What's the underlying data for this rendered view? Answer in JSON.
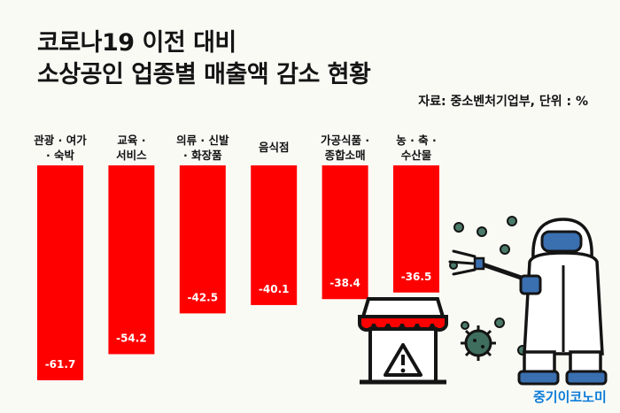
{
  "title_line1": "코로나19 이전 대비",
  "title_line2": "소상공인 업종별 매출액 감소 현황",
  "source": "자료: 중소벤처기업부, 단위 : %",
  "brand": "중기이코노미",
  "colors": {
    "bar": "#ff0000",
    "background": "#fafaf5",
    "brand": "#0a7bd8"
  },
  "chart_data": {
    "type": "bar",
    "orientation": "vertical-down",
    "categories": [
      [
        "관광 · 여가",
        "· 숙박"
      ],
      [
        "교육 ·",
        "서비스"
      ],
      [
        "의류 · 신발",
        "· 화장품"
      ],
      [
        "음식점"
      ],
      [
        "가공식품 ·",
        "종합소매"
      ],
      [
        "농 · 축 ·",
        "수산물"
      ]
    ],
    "values": [
      -61.7,
      -54.2,
      -42.5,
      -40.1,
      -38.4,
      -36.5
    ],
    "value_labels": [
      "-61.7",
      "-54.2",
      "-42.5",
      "-40.1",
      "-38.4",
      "-36.5"
    ],
    "ylim": [
      -61.7,
      0
    ],
    "grid": false,
    "legend": "none"
  }
}
